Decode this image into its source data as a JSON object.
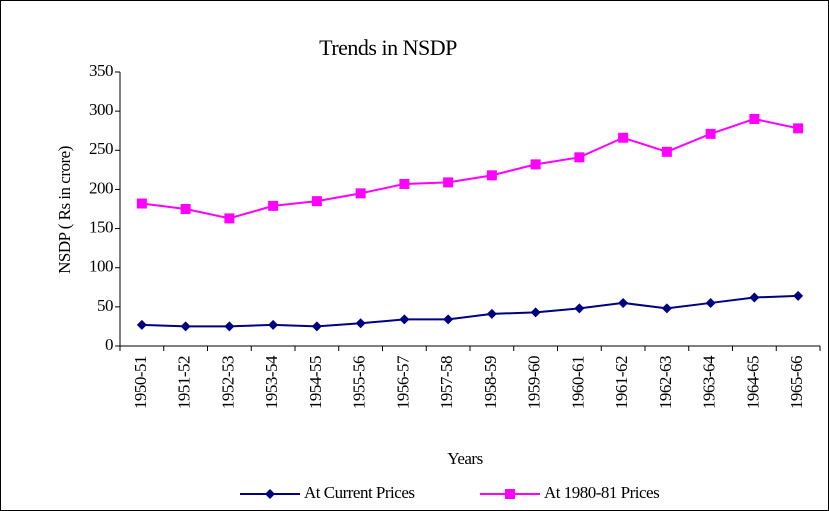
{
  "chart_data": {
    "type": "line",
    "title": "Trends in NSDP",
    "x_label": "Years",
    "y_label": "NSDP (  Rs in  crore)",
    "categories": [
      "1950-51",
      "1951-52",
      "1952-53",
      "1953-54",
      "1954-55",
      "1955-56",
      "1956-57",
      "1957-58",
      "1958-59",
      "1959-60",
      "1960-61",
      "1961-62",
      "1962-63",
      "1963-64",
      "1964-65",
      "1965-66"
    ],
    "series": [
      {
        "name": "At Current Prices",
        "color": "#000080",
        "marker": "diamond",
        "values": [
          27,
          25,
          25,
          27,
          25,
          29,
          34,
          34,
          41,
          43,
          48,
          55,
          48,
          55,
          62,
          64
        ]
      },
      {
        "name": "At 1980-81 Prices",
        "color": "#ff00ff",
        "marker": "square",
        "values": [
          182,
          175,
          163,
          179,
          185,
          195,
          207,
          209,
          218,
          232,
          241,
          266,
          248,
          271,
          290,
          278
        ]
      }
    ],
    "ylim": [
      0,
      350
    ],
    "yticks": [
      0,
      50,
      100,
      150,
      200,
      250,
      300,
      350
    ],
    "grid": false,
    "legend": "bottom"
  }
}
